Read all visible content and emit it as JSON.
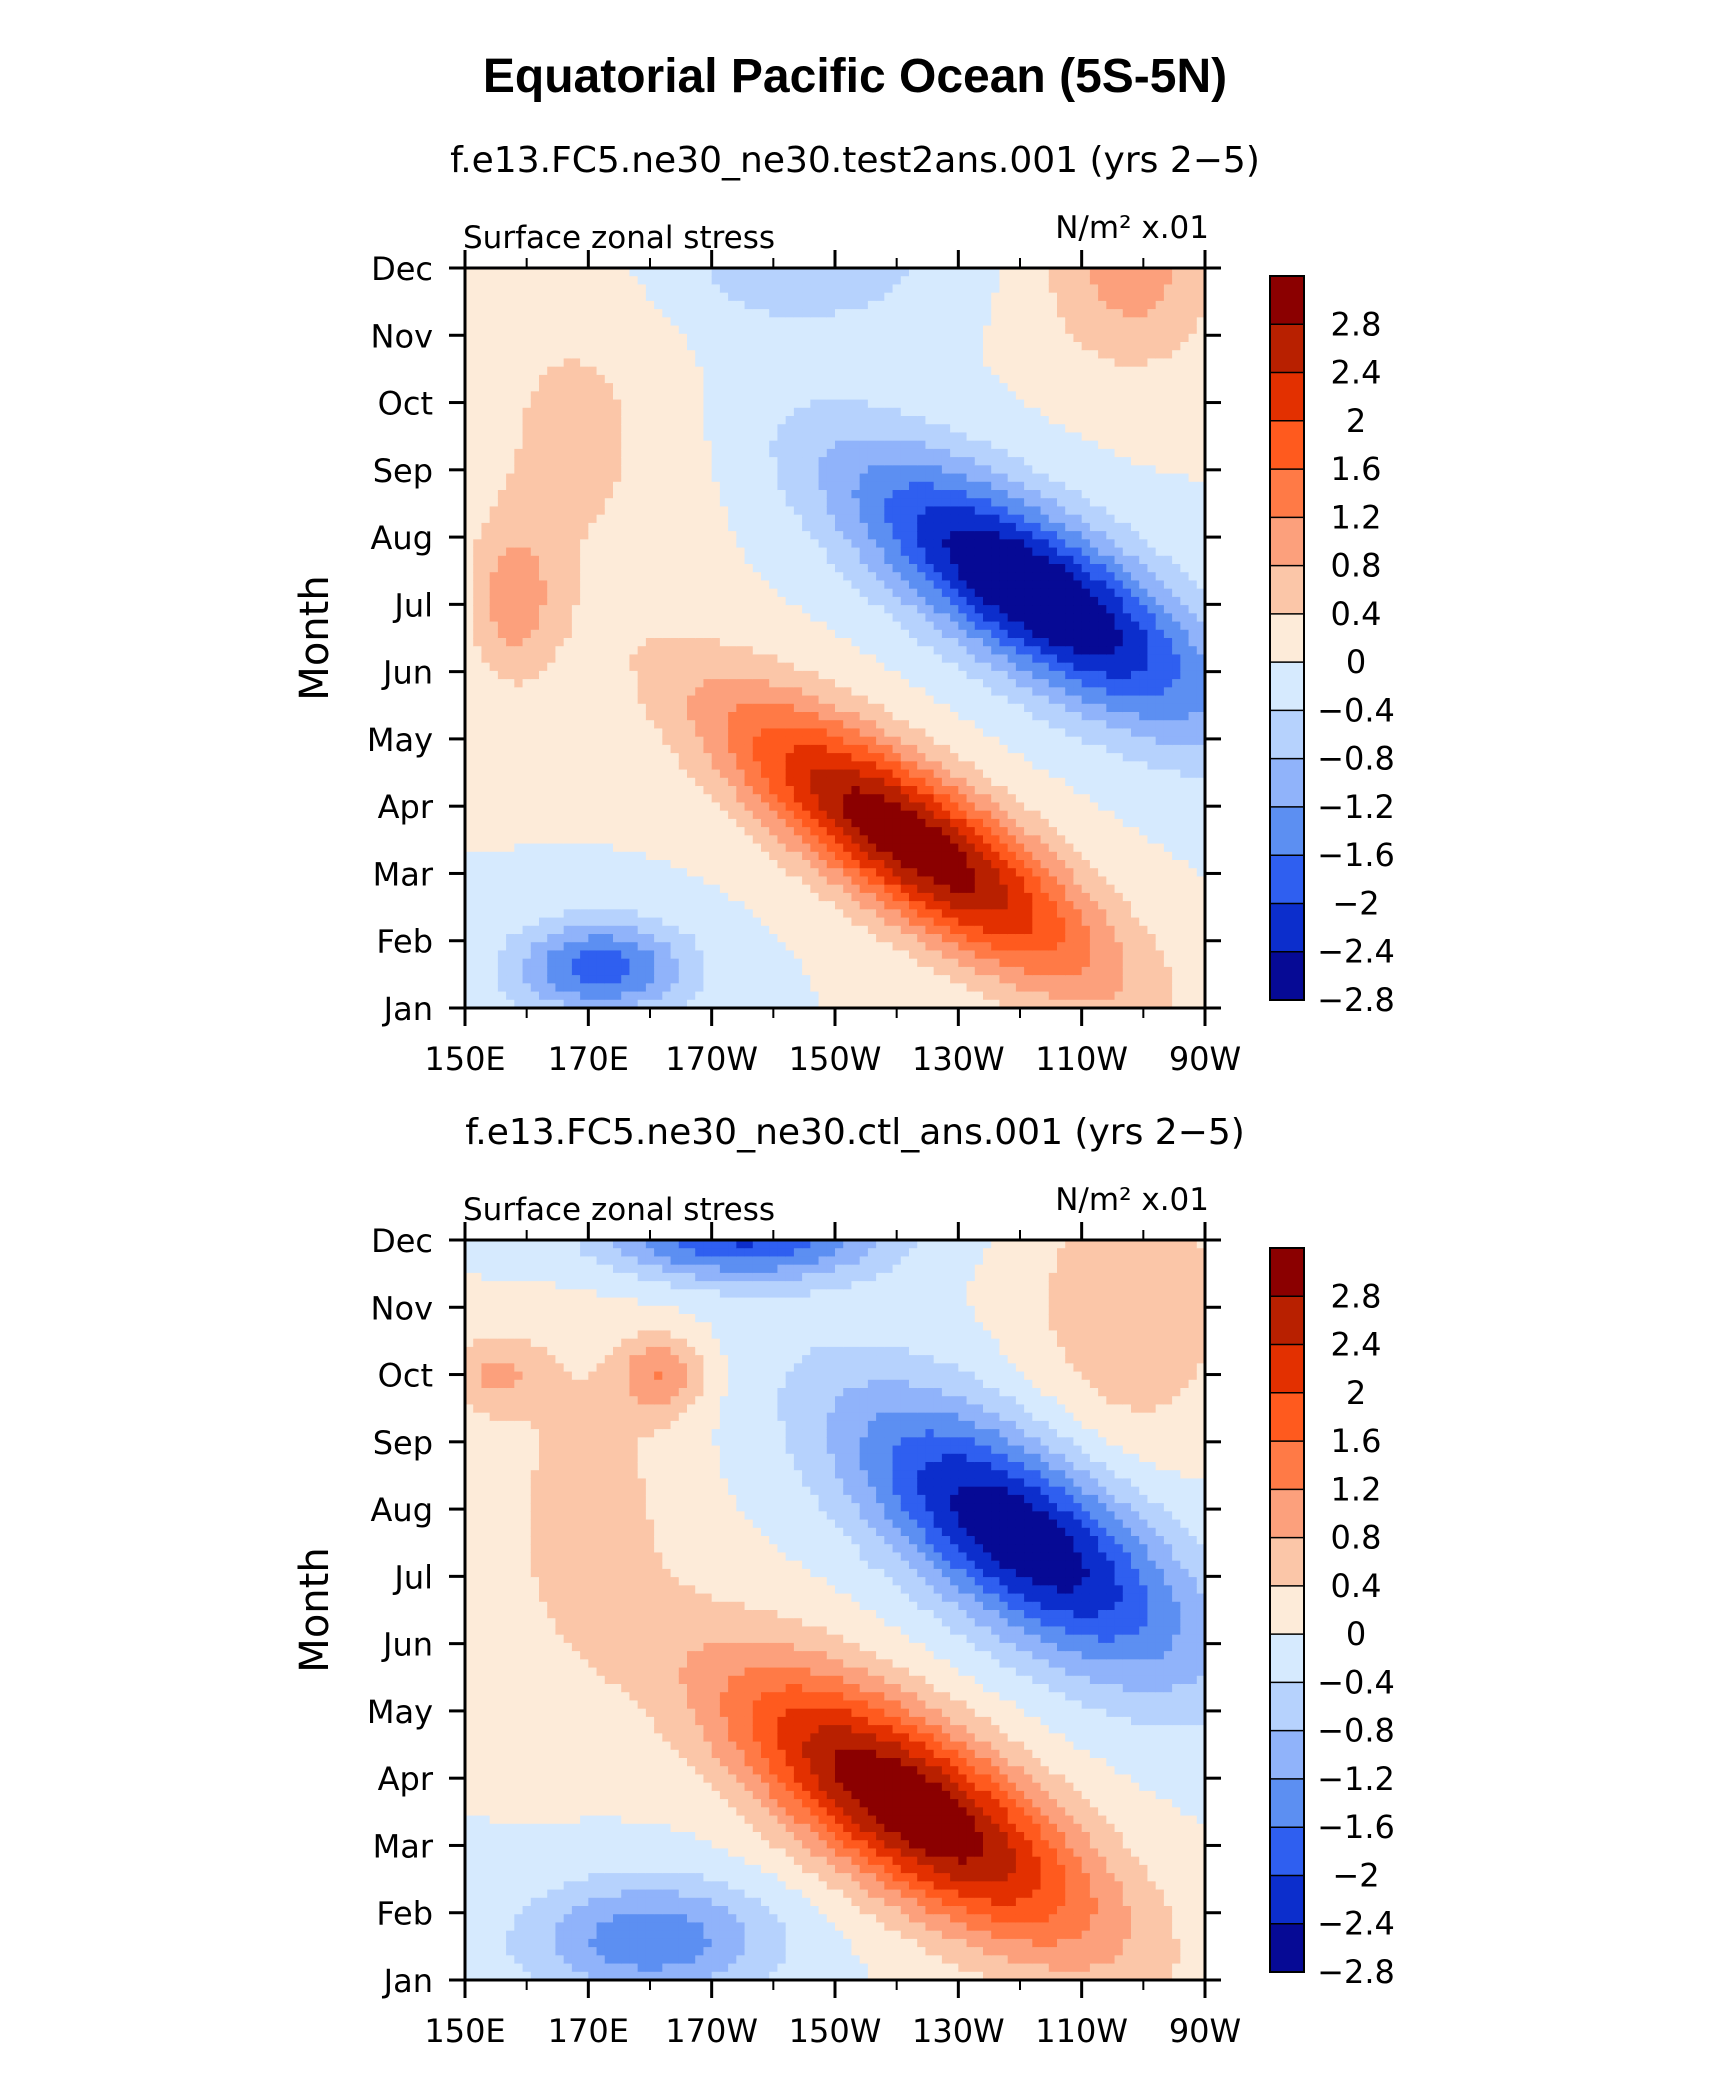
{
  "title": "Equatorial Pacific Ocean (5S-5N)",
  "chart_data": [
    {
      "type": "heatmap",
      "title": "f.e13.FC5.ne30_ne30.test2ans.001 (yrs 2−5)",
      "left_label": "Surface zonal stress",
      "units_label": "N/m² x.01",
      "ylabel": "Month",
      "xlabel": "",
      "x_ticks": [
        "150E",
        "170E",
        "170W",
        "150W",
        "130W",
        "110W",
        "90W"
      ],
      "y_ticks": [
        "Jan",
        "Feb",
        "Mar",
        "Apr",
        "May",
        "Jun",
        "Jul",
        "Aug",
        "Sep",
        "Oct",
        "Nov",
        "Dec"
      ],
      "xlim_lon": [
        150,
        270
      ],
      "ylim_month": [
        1,
        12
      ],
      "levels": [
        "2.8",
        "2.4",
        "2",
        "1.6",
        "1.2",
        "0.8",
        "0.4",
        "0",
        "−0.4",
        "−0.8",
        "−1.2",
        "−1.6",
        "−2",
        "−2.4",
        "−2.8"
      ],
      "features": [
        {
          "lon": 222,
          "month": 3.5,
          "value": 3.2,
          "wlon": 30,
          "wmonth": 1.2,
          "tilt": -0.055
        },
        {
          "lon": 242,
          "month": 7.2,
          "value": -3.0,
          "wlon": 30,
          "wmonth": 1.3,
          "tilt": -0.05
        },
        {
          "lon": 172,
          "month": 1.6,
          "value": -1.8,
          "wlon": 14,
          "wmonth": 0.7,
          "tilt": 0
        },
        {
          "lon": 158,
          "month": 7.0,
          "value": 0.9,
          "wlon": 7,
          "wmonth": 1.2,
          "tilt": 0
        },
        {
          "lon": 258,
          "month": 12.0,
          "value": 1.0,
          "wlon": 14,
          "wmonth": 1.5,
          "tilt": 0
        },
        {
          "lon": 205,
          "month": 12.0,
          "value": -0.7,
          "wlon": 22,
          "wmonth": 0.9,
          "tilt": 0
        },
        {
          "lon": 168,
          "month": 9.5,
          "value": 0.5,
          "wlon": 18,
          "wmonth": 2.5,
          "tilt": 0
        }
      ]
    },
    {
      "type": "heatmap",
      "title": "f.e13.FC5.ne30_ne30.ctl_ans.001 (yrs 2−5)",
      "left_label": "Surface zonal stress",
      "units_label": "N/m² x.01",
      "ylabel": "Month",
      "xlabel": "",
      "x_ticks": [
        "150E",
        "170E",
        "170W",
        "150W",
        "130W",
        "110W",
        "90W"
      ],
      "y_ticks": [
        "Jan",
        "Feb",
        "Mar",
        "Apr",
        "May",
        "Jun",
        "Jul",
        "Aug",
        "Sep",
        "Oct",
        "Nov",
        "Dec"
      ],
      "xlim_lon": [
        150,
        270
      ],
      "ylim_month": [
        1,
        12
      ],
      "levels": [
        "2.8",
        "2.4",
        "2",
        "1.6",
        "1.2",
        "0.8",
        "0.4",
        "0",
        "−0.4",
        "−0.8",
        "−1.2",
        "−1.6",
        "−2",
        "−2.4",
        "−2.8"
      ],
      "features": [
        {
          "lon": 222,
          "month": 3.6,
          "value": 3.3,
          "wlon": 30,
          "wmonth": 1.4,
          "tilt": -0.05
        },
        {
          "lon": 240,
          "month": 7.6,
          "value": -2.8,
          "wlon": 28,
          "wmonth": 1.5,
          "tilt": -0.05
        },
        {
          "lon": 180,
          "month": 1.6,
          "value": -1.5,
          "wlon": 20,
          "wmonth": 0.9,
          "tilt": 0
        },
        {
          "lon": 195,
          "month": 12.0,
          "value": -2.0,
          "wlon": 22,
          "wmonth": 0.6,
          "tilt": 0
        },
        {
          "lon": 182,
          "month": 10.0,
          "value": 1.1,
          "wlon": 7,
          "wmonth": 0.6,
          "tilt": 0
        },
        {
          "lon": 155,
          "month": 10.0,
          "value": 0.8,
          "wlon": 8,
          "wmonth": 0.6,
          "tilt": 0
        },
        {
          "lon": 170,
          "month": 8.0,
          "value": 0.6,
          "wlon": 14,
          "wmonth": 2.5,
          "tilt": 0
        },
        {
          "lon": 258,
          "month": 11.0,
          "value": 0.8,
          "wlon": 16,
          "wmonth": 2.0,
          "tilt": 0
        }
      ]
    }
  ],
  "colorbar_colors": [
    "#8b0000",
    "#b82000",
    "#e33000",
    "#ff5a1e",
    "#ff7a46",
    "#fca07c",
    "#fbc6a8",
    "#fdebd9",
    "#d6eafe",
    "#b6d2fd",
    "#90b3fa",
    "#5c8ff2",
    "#2f5ff0",
    "#0c2ecc",
    "#060a95"
  ]
}
